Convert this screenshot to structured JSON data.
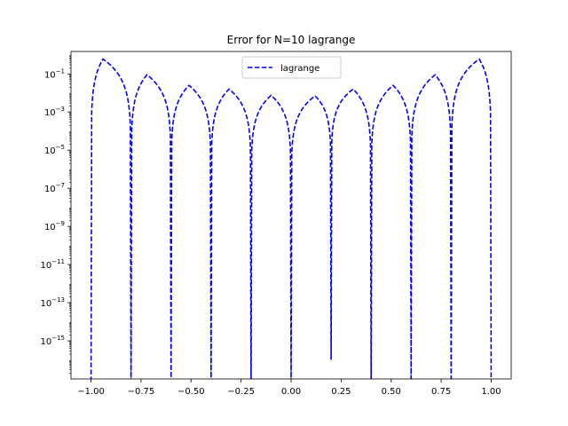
{
  "chart_data": {
    "type": "line",
    "title": "Error for N=10 lagrange",
    "xlabel": "",
    "ylabel": "",
    "y_scale": "log",
    "xlim": [
      -1.1,
      1.1
    ],
    "ylim": [
      1e-17,
      1.5
    ],
    "x_ticks": [
      -1.0,
      -0.75,
      -0.5,
      -0.25,
      0.0,
      0.25,
      0.5,
      0.75,
      1.0
    ],
    "x_tick_labels": [
      "−1.00",
      "−0.75",
      "−0.50",
      "−0.25",
      "0.00",
      "0.25",
      "0.50",
      "0.75",
      "1.00"
    ],
    "y_ticks": [
      {
        "value": 0.1,
        "base": "10",
        "exp": "−1"
      },
      {
        "value": 0.001,
        "base": "10",
        "exp": "−3"
      },
      {
        "value": 1e-05,
        "base": "10",
        "exp": "−5"
      },
      {
        "value": 1e-07,
        "base": "10",
        "exp": "−7"
      },
      {
        "value": 1e-09,
        "base": "10",
        "exp": "−9"
      },
      {
        "value": 1e-11,
        "base": "10",
        "exp": "−11"
      },
      {
        "value": 1e-13,
        "base": "10",
        "exp": "−13"
      },
      {
        "value": 1e-15,
        "base": "10",
        "exp": "−15"
      }
    ],
    "legend_position": "top-center",
    "series": [
      {
        "name": "lagrange",
        "color": "#0000ff",
        "line_style": "dashed",
        "nodes": [
          -1.0,
          -0.8,
          -0.6,
          -0.4,
          -0.2,
          0.0,
          0.2,
          0.4,
          0.6,
          0.8,
          1.0
        ],
        "node_floor_values": {
          "0.2": 1e-16
        },
        "lobe_peaks": [
          {
            "x": -0.94,
            "y": 0.6
          },
          {
            "x": -0.72,
            "y": 0.09
          },
          {
            "x": -0.51,
            "y": 0.025
          },
          {
            "x": -0.31,
            "y": 0.016
          },
          {
            "x": -0.1,
            "y": 0.0075
          },
          {
            "x": 0.12,
            "y": 0.007
          },
          {
            "x": 0.31,
            "y": 0.016
          },
          {
            "x": 0.51,
            "y": 0.025
          },
          {
            "x": 0.72,
            "y": 0.09
          },
          {
            "x": 0.94,
            "y": 0.6
          }
        ]
      }
    ]
  }
}
